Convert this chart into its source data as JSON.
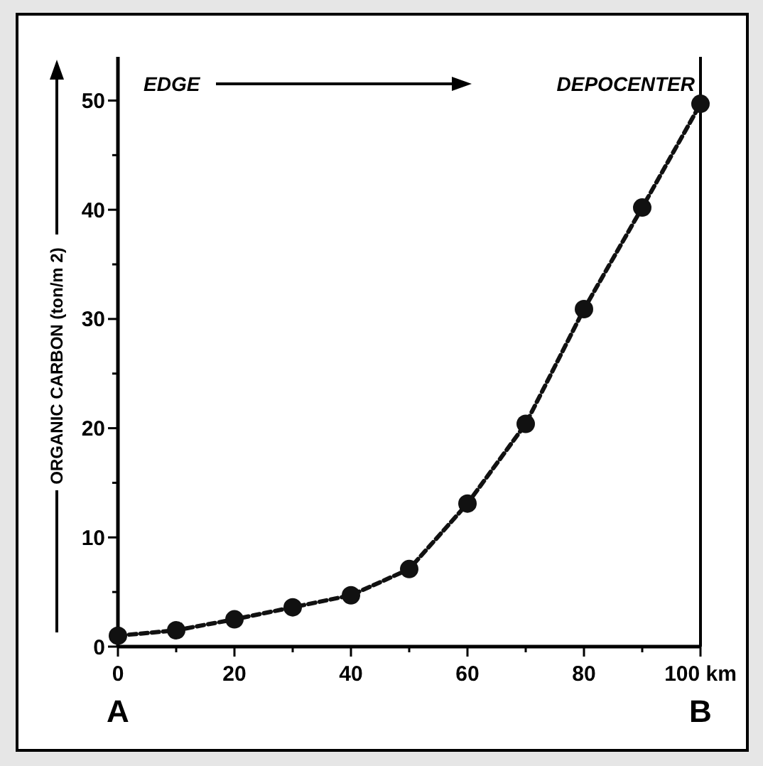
{
  "chart_data": {
    "type": "line",
    "ylabel": "ORGANIC CARBON (ton/m 2)",
    "x": [
      0,
      10,
      20,
      30,
      40,
      50,
      60,
      70,
      80,
      90,
      100
    ],
    "series": [
      {
        "color": "#111111",
        "values": [
          1.0,
          1.5,
          2.5,
          3.6,
          4.7,
          7.1,
          13.1,
          20.4,
          30.9,
          40.2,
          49.7
        ]
      }
    ],
    "xlim": [
      0,
      100
    ],
    "ylim": [
      0,
      54
    ],
    "xticks": [
      0,
      {
        "value": 10,
        "label": null
      },
      20,
      {
        "value": 30,
        "label": null
      },
      40,
      {
        "value": 50,
        "label": null
      },
      60,
      {
        "value": 70,
        "label": null
      },
      80,
      {
        "value": 90,
        "label": null
      },
      {
        "value": 100,
        "label": "100 km"
      }
    ],
    "yticks": [
      0,
      {
        "value": 5,
        "label": null
      },
      10,
      {
        "value": 15,
        "label": null
      },
      20,
      {
        "value": 25,
        "label": null
      },
      30,
      {
        "value": 35,
        "label": null
      },
      40,
      {
        "value": 45,
        "label": null
      },
      50
    ],
    "annotations": [
      "EDGE",
      "DEPOCENTER",
      "A",
      "B"
    ],
    "grid": false,
    "marker": "circle",
    "line_style": "dashed"
  }
}
